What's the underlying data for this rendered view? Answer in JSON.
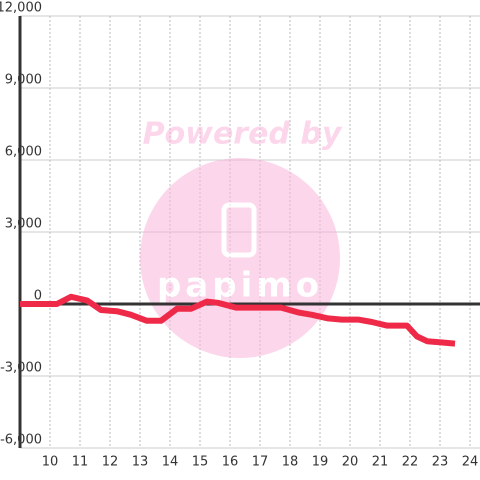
{
  "chart_data": {
    "type": "line",
    "watermark": {
      "title": "Powered by",
      "logo": "papimo"
    },
    "x": [
      9.0,
      10.23,
      10.7,
      11.23,
      11.7,
      12.23,
      12.7,
      13.23,
      13.7,
      14.23,
      14.7,
      15.23,
      15.6,
      16.2,
      17.7,
      18.27,
      18.73,
      19.27,
      19.73,
      20.27,
      20.73,
      21.23,
      21.9,
      22.23,
      22.57,
      23.03,
      23.5
    ],
    "series": [
      {
        "color": "#ee2a48",
        "values": [
          0,
          0,
          300,
          150,
          -250,
          -300,
          -450,
          -700,
          -700,
          -200,
          -200,
          100,
          50,
          -150,
          -150,
          -350,
          -450,
          -600,
          -650,
          -650,
          -750,
          -900,
          -900,
          -1350,
          -1550,
          -1600,
          -1650
        ]
      }
    ],
    "xlim": [
      9,
      24.333
    ],
    "ylim": [
      -6000,
      12000
    ],
    "xticks": [
      10,
      11,
      12,
      13,
      14,
      15,
      16,
      17,
      18,
      19,
      20,
      21,
      22,
      23,
      24
    ],
    "yticks": [
      {
        "value": 12000,
        "label": "12,000"
      },
      {
        "value": 9000,
        "label": "9,000"
      },
      {
        "value": 6000,
        "label": "6,000"
      },
      {
        "value": 3000,
        "label": "3,000"
      },
      0,
      {
        "value": -3000,
        "label": "-3,000"
      },
      {
        "value": -6000,
        "label": "-6,000"
      }
    ],
    "grid": true
  }
}
